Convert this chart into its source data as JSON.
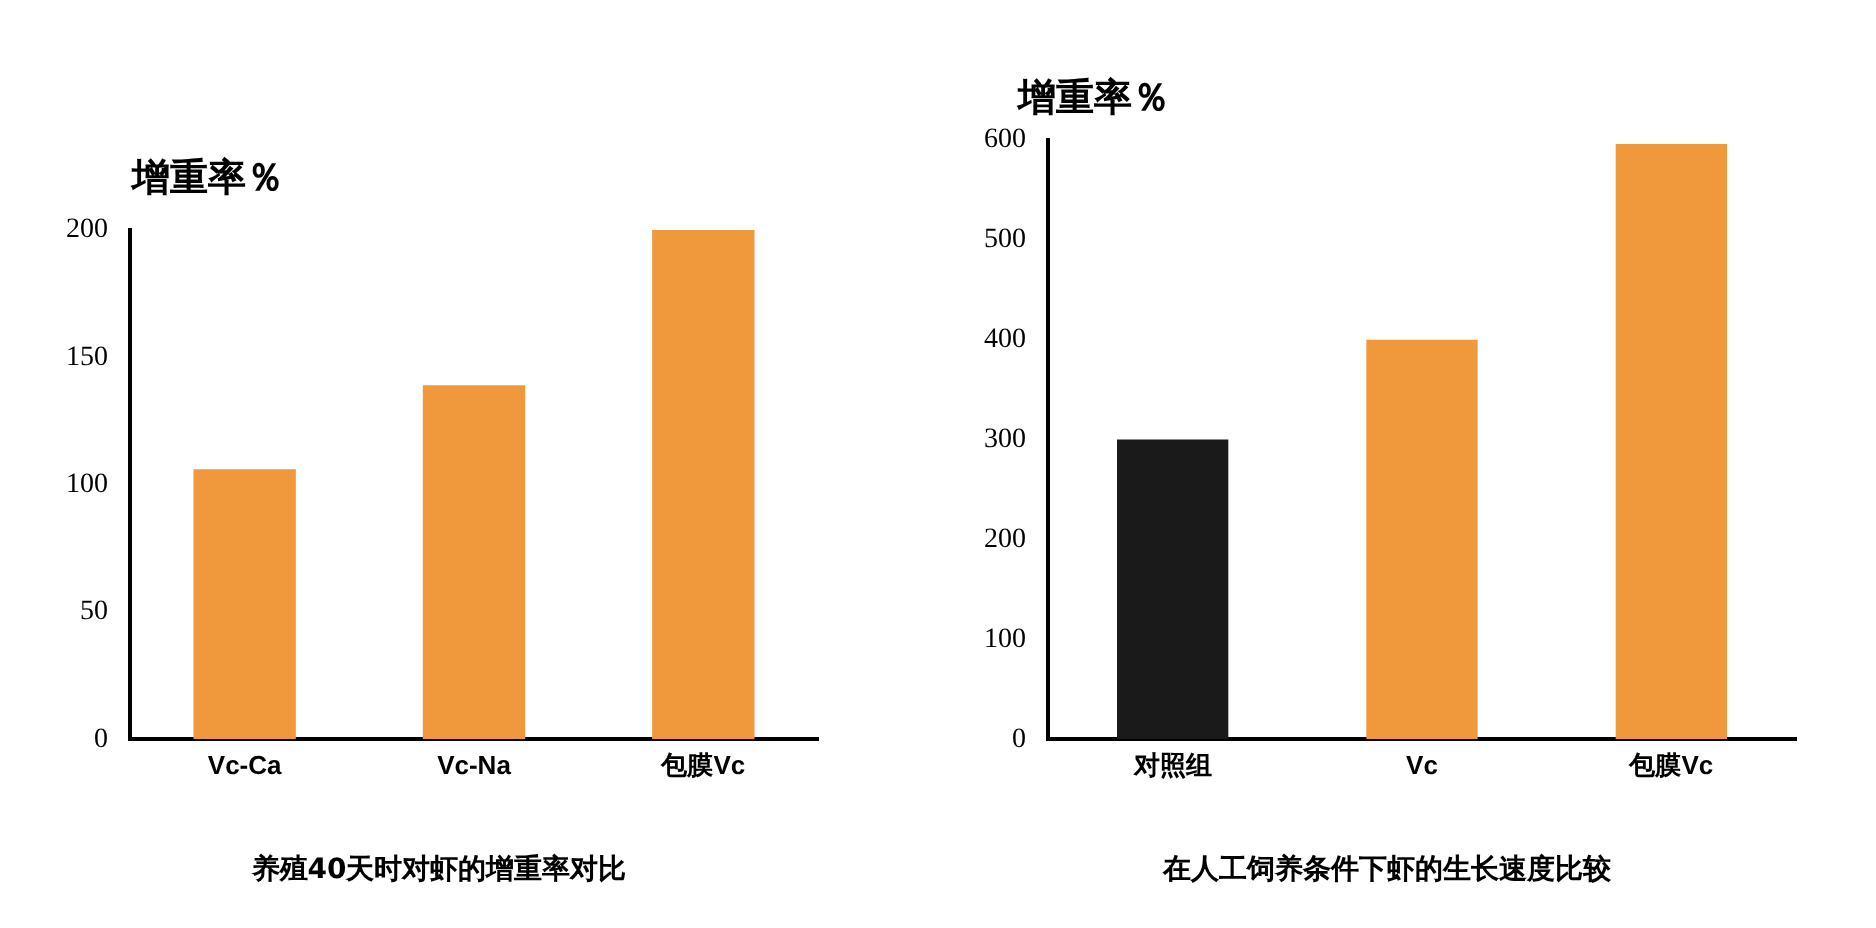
{
  "chart_data": [
    {
      "type": "bar",
      "ylabel": "增重率％",
      "title": "养殖40天时对虾的增重率对比",
      "categories": [
        "Vc-Ca",
        "Vc-Na",
        "包膜Vc"
      ],
      "values": [
        106,
        139,
        200
      ],
      "colors": [
        "#f0983c",
        "#f0983c",
        "#f0983c"
      ],
      "ylim": [
        0,
        200
      ],
      "yticks": [
        0,
        50,
        100,
        150,
        200
      ],
      "grid": false,
      "legend": false
    },
    {
      "type": "bar",
      "ylabel": "增重率％",
      "title": "在人工饲养条件下虾的生长速度比较",
      "categories": [
        "对照组",
        "Vc",
        "包膜Vc"
      ],
      "values": [
        300,
        400,
        596
      ],
      "colors": [
        "#1a1a1a",
        "#f0983c",
        "#f0983c"
      ],
      "ylim": [
        0,
        600
      ],
      "yticks": [
        0,
        100,
        200,
        300,
        400,
        500,
        600
      ],
      "grid": false,
      "legend": false
    }
  ]
}
